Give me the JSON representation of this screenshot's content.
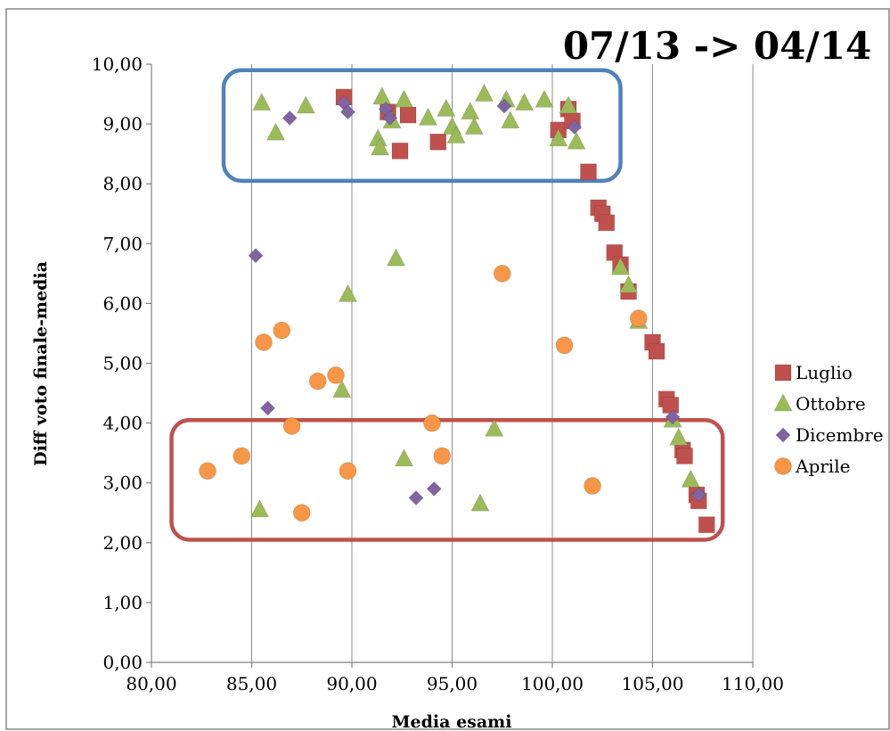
{
  "chart_data": {
    "type": "scatter",
    "title": "07/13 -> 04/14",
    "xlabel": "Media esami",
    "ylabel": "Diff voto finale-media",
    "xlim": [
      80,
      110
    ],
    "ylim": [
      0,
      10
    ],
    "x_ticks": [
      {
        "value": 80,
        "label": "80,00"
      },
      {
        "value": 85,
        "label": "85,00"
      },
      {
        "value": 90,
        "label": "90,00"
      },
      {
        "value": 95,
        "label": "95,00"
      },
      {
        "value": 100,
        "label": "100,00"
      },
      {
        "value": 105,
        "label": "105,00"
      },
      {
        "value": 110,
        "label": "110,00"
      }
    ],
    "y_ticks": [
      {
        "value": 0,
        "label": "0,00"
      },
      {
        "value": 1,
        "label": "1,00"
      },
      {
        "value": 2,
        "label": "2,00"
      },
      {
        "value": 3,
        "label": "3,00"
      },
      {
        "value": 4,
        "label": "4,00"
      },
      {
        "value": 5,
        "label": "5,00"
      },
      {
        "value": 6,
        "label": "6,00"
      },
      {
        "value": 7,
        "label": "7,00"
      },
      {
        "value": 8,
        "label": "8,00"
      },
      {
        "value": 9,
        "label": "9,00"
      },
      {
        "value": 10,
        "label": "10,00"
      }
    ],
    "grid": "vertical",
    "legend_position": "right",
    "series": [
      {
        "name": "Luglio",
        "marker": "square",
        "color": "#c0504d",
        "points": [
          [
            89.6,
            9.45
          ],
          [
            91.8,
            9.2
          ],
          [
            92.8,
            9.15
          ],
          [
            92.4,
            8.55
          ],
          [
            94.3,
            8.7
          ],
          [
            100.3,
            8.9
          ],
          [
            100.8,
            9.25
          ],
          [
            101.0,
            9.05
          ],
          [
            101.8,
            8.2
          ],
          [
            102.3,
            7.6
          ],
          [
            102.5,
            7.5
          ],
          [
            102.7,
            7.35
          ],
          [
            103.1,
            6.85
          ],
          [
            103.4,
            6.65
          ],
          [
            103.8,
            6.2
          ],
          [
            105.0,
            5.35
          ],
          [
            105.2,
            5.2
          ],
          [
            105.7,
            4.4
          ],
          [
            105.9,
            4.3
          ],
          [
            106.5,
            3.55
          ],
          [
            106.6,
            3.45
          ],
          [
            107.2,
            2.8
          ],
          [
            107.3,
            2.7
          ],
          [
            107.7,
            2.3
          ]
        ]
      },
      {
        "name": "Ottobre",
        "marker": "triangle",
        "color": "#9bbb59",
        "points": [
          [
            85.5,
            9.35
          ],
          [
            86.2,
            8.85
          ],
          [
            87.7,
            9.3
          ],
          [
            91.5,
            9.45
          ],
          [
            92.6,
            9.4
          ],
          [
            91.3,
            8.75
          ],
          [
            91.4,
            8.6
          ],
          [
            92.0,
            9.05
          ],
          [
            93.8,
            9.1
          ],
          [
            94.7,
            9.25
          ],
          [
            95.0,
            8.95
          ],
          [
            95.2,
            8.8
          ],
          [
            95.9,
            9.2
          ],
          [
            96.1,
            8.95
          ],
          [
            96.6,
            9.5
          ],
          [
            97.7,
            9.4
          ],
          [
            97.9,
            9.05
          ],
          [
            98.6,
            9.35
          ],
          [
            99.6,
            9.4
          ],
          [
            100.3,
            8.75
          ],
          [
            100.8,
            9.3
          ],
          [
            101.2,
            8.7
          ],
          [
            103.4,
            6.6
          ],
          [
            103.8,
            6.3
          ],
          [
            104.3,
            5.7
          ],
          [
            106.0,
            4.05
          ],
          [
            106.3,
            3.75
          ],
          [
            106.9,
            3.05
          ],
          [
            89.8,
            6.15
          ],
          [
            92.2,
            6.75
          ],
          [
            89.5,
            4.55
          ],
          [
            92.6,
            3.4
          ],
          [
            85.4,
            2.55
          ],
          [
            96.4,
            2.65
          ],
          [
            97.1,
            3.9
          ]
        ]
      },
      {
        "name": "Dicembre",
        "marker": "diamond",
        "color": "#8064a2",
        "points": [
          [
            86.9,
            9.1
          ],
          [
            89.6,
            9.35
          ],
          [
            89.8,
            9.2
          ],
          [
            91.7,
            9.25
          ],
          [
            91.9,
            9.1
          ],
          [
            97.6,
            9.3
          ],
          [
            101.1,
            8.95
          ],
          [
            85.2,
            6.8
          ],
          [
            85.8,
            4.25
          ],
          [
            106.0,
            4.1
          ],
          [
            107.3,
            2.8
          ],
          [
            93.2,
            2.75
          ],
          [
            94.1,
            2.9
          ]
        ]
      },
      {
        "name": "Aprile",
        "marker": "circle",
        "color": "#f79646",
        "points": [
          [
            82.8,
            3.2
          ],
          [
            84.5,
            3.45
          ],
          [
            85.6,
            5.35
          ],
          [
            86.5,
            5.55
          ],
          [
            87.0,
            3.95
          ],
          [
            87.5,
            2.5
          ],
          [
            88.3,
            4.7
          ],
          [
            89.2,
            4.8
          ],
          [
            89.8,
            3.2
          ],
          [
            94.0,
            4.0
          ],
          [
            94.5,
            3.45
          ],
          [
            97.5,
            6.5
          ],
          [
            100.6,
            5.3
          ],
          [
            102.0,
            2.95
          ],
          [
            104.3,
            5.75
          ]
        ]
      }
    ],
    "annotations": [
      {
        "shape": "rounded-rectangle",
        "color": "#4f81bd",
        "x_range": [
          83.6,
          103.4
        ],
        "y_range": [
          8.05,
          9.9
        ]
      },
      {
        "shape": "rounded-rectangle",
        "color": "#c0504d",
        "x_range": [
          81.0,
          108.5
        ],
        "y_range": [
          2.05,
          4.05
        ]
      }
    ]
  }
}
